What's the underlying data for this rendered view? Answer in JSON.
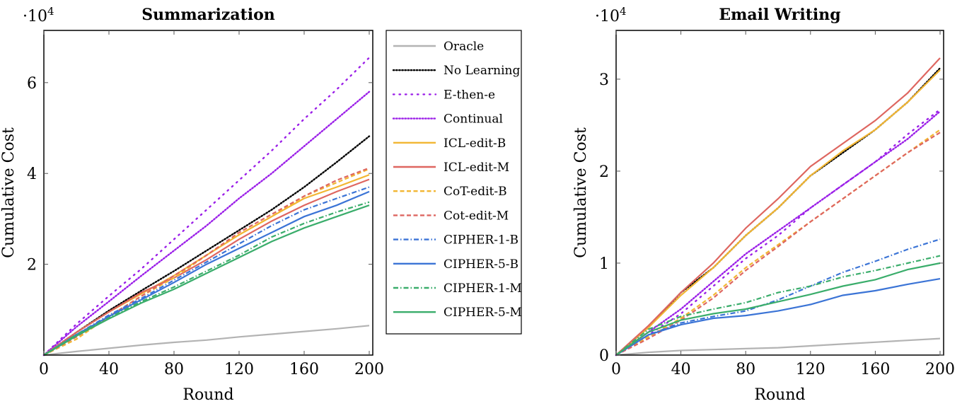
{
  "chart_data": [
    {
      "type": "line",
      "title": "Summarization",
      "xlabel": "Round",
      "ylabel": "Cumulative Cost",
      "y_multiplier": "·10^4",
      "xlim": [
        0,
        200
      ],
      "ylim": [
        0,
        7.15
      ],
      "xticks": [
        0,
        40,
        80,
        120,
        160,
        200
      ],
      "yticks": [
        2,
        4,
        6
      ],
      "grid": false,
      "x": [
        0,
        20,
        40,
        60,
        80,
        100,
        120,
        140,
        160,
        180,
        200
      ],
      "series": [
        {
          "name": "Oracle",
          "values": [
            0,
            0.08,
            0.15,
            0.22,
            0.28,
            0.33,
            0.4,
            0.46,
            0.52,
            0.58,
            0.65
          ]
        },
        {
          "name": "No Learning",
          "values": [
            0,
            0.5,
            0.98,
            1.42,
            1.85,
            2.3,
            2.75,
            3.2,
            3.7,
            4.25,
            4.82
          ]
        },
        {
          "name": "E-then-e",
          "values": [
            0,
            0.68,
            1.3,
            1.9,
            2.55,
            3.2,
            3.85,
            4.5,
            5.2,
            5.85,
            6.55
          ]
        },
        {
          "name": "Continual",
          "values": [
            0,
            0.62,
            1.18,
            1.75,
            2.3,
            2.85,
            3.45,
            4.0,
            4.6,
            5.2,
            5.8
          ]
        },
        {
          "name": "ICL-edit-B",
          "values": [
            0,
            0.5,
            0.95,
            1.35,
            1.75,
            2.2,
            2.65,
            3.05,
            3.45,
            3.7,
            3.97
          ]
        },
        {
          "name": "ICL-edit-M",
          "values": [
            0,
            0.5,
            0.95,
            1.38,
            1.7,
            2.1,
            2.55,
            2.95,
            3.3,
            3.6,
            3.87
          ]
        },
        {
          "name": "CoT-edit-B",
          "values": [
            0,
            0.35,
            0.85,
            1.3,
            1.7,
            2.2,
            2.65,
            3.05,
            3.5,
            3.8,
            4.1
          ]
        },
        {
          "name": "Cot-edit-M",
          "values": [
            0,
            0.4,
            0.85,
            1.3,
            1.75,
            2.2,
            2.7,
            3.1,
            3.5,
            3.85,
            4.12
          ]
        },
        {
          "name": "CIPHER-1-B",
          "values": [
            0,
            0.45,
            0.88,
            1.25,
            1.65,
            2.05,
            2.45,
            2.85,
            3.2,
            3.45,
            3.7
          ]
        },
        {
          "name": "CIPHER-5-B",
          "values": [
            0,
            0.45,
            0.85,
            1.22,
            1.6,
            2.0,
            2.35,
            2.7,
            3.05,
            3.3,
            3.6
          ]
        },
        {
          "name": "CIPHER-1-M",
          "values": [
            0,
            0.45,
            0.82,
            1.18,
            1.5,
            1.85,
            2.2,
            2.6,
            2.9,
            3.15,
            3.37
          ]
        },
        {
          "name": "CIPHER-5-M",
          "values": [
            0,
            0.42,
            0.8,
            1.15,
            1.45,
            1.8,
            2.15,
            2.5,
            2.8,
            3.05,
            3.3
          ]
        }
      ]
    },
    {
      "type": "line",
      "title": "Email Writing",
      "xlabel": "Round",
      "ylabel": "Cumulative Cost",
      "y_multiplier": "·10^4",
      "xlim": [
        0,
        200
      ],
      "ylim": [
        0,
        3.53
      ],
      "xticks": [
        0,
        40,
        80,
        120,
        160,
        200
      ],
      "yticks": [
        0,
        1,
        2,
        3
      ],
      "grid": false,
      "x": [
        0,
        20,
        40,
        60,
        80,
        100,
        120,
        140,
        160,
        180,
        200
      ],
      "series": [
        {
          "name": "Oracle",
          "values": [
            0,
            0.03,
            0.05,
            0.06,
            0.07,
            0.08,
            0.1,
            0.12,
            0.14,
            0.16,
            0.18
          ]
        },
        {
          "name": "No Learning",
          "values": [
            0,
            0.3,
            0.68,
            0.95,
            1.3,
            1.6,
            1.95,
            2.2,
            2.45,
            2.75,
            3.12
          ]
        },
        {
          "name": "E-then-e",
          "values": [
            0,
            0.22,
            0.45,
            0.75,
            1.05,
            1.3,
            1.6,
            1.85,
            2.1,
            2.4,
            2.67
          ]
        },
        {
          "name": "Continual",
          "values": [
            0,
            0.25,
            0.5,
            0.8,
            1.1,
            1.35,
            1.6,
            1.85,
            2.1,
            2.35,
            2.65
          ]
        },
        {
          "name": "ICL-edit-B",
          "values": [
            0,
            0.3,
            0.65,
            0.95,
            1.3,
            1.6,
            1.95,
            2.22,
            2.45,
            2.75,
            3.1
          ]
        },
        {
          "name": "ICL-edit-M",
          "values": [
            0,
            0.32,
            0.68,
            1.0,
            1.38,
            1.7,
            2.05,
            2.3,
            2.55,
            2.85,
            3.23
          ]
        },
        {
          "name": "CoT-edit-B",
          "values": [
            0,
            0.2,
            0.4,
            0.65,
            0.95,
            1.2,
            1.45,
            1.7,
            1.95,
            2.2,
            2.45
          ]
        },
        {
          "name": "Cot-edit-M",
          "values": [
            0,
            0.18,
            0.38,
            0.62,
            0.92,
            1.18,
            1.45,
            1.7,
            1.95,
            2.2,
            2.42
          ]
        },
        {
          "name": "CIPHER-1-B",
          "values": [
            0,
            0.22,
            0.35,
            0.42,
            0.48,
            0.6,
            0.75,
            0.9,
            1.02,
            1.15,
            1.26
          ]
        },
        {
          "name": "CIPHER-5-B",
          "values": [
            0,
            0.22,
            0.33,
            0.4,
            0.43,
            0.48,
            0.55,
            0.65,
            0.7,
            0.77,
            0.83
          ]
        },
        {
          "name": "CIPHER-1-M",
          "values": [
            0,
            0.28,
            0.42,
            0.5,
            0.57,
            0.68,
            0.75,
            0.85,
            0.92,
            1.0,
            1.08
          ]
        },
        {
          "name": "CIPHER-5-M",
          "values": [
            0,
            0.25,
            0.38,
            0.45,
            0.5,
            0.58,
            0.66,
            0.75,
            0.82,
            0.93,
            1.0
          ]
        }
      ]
    }
  ],
  "legend": {
    "placement": "between-panels",
    "items": [
      "Oracle",
      "No Learning",
      "E-then-e",
      "Continual",
      "ICL-edit-B",
      "ICL-edit-M",
      "CoT-edit-B",
      "Cot-edit-M",
      "CIPHER-1-B",
      "CIPHER-5-B",
      "CIPHER-1-M",
      "CIPHER-5-M"
    ]
  },
  "styles": {
    "Oracle": {
      "color": "#b3b3b3",
      "dash": "solid"
    },
    "No Learning": {
      "color": "#000000",
      "dash": "dotted"
    },
    "E-then-e": {
      "color": "#9b1fe8",
      "dash": "loosely-dotted"
    },
    "Continual": {
      "color": "#9b1fe8",
      "dash": "dotted"
    },
    "ICL-edit-B": {
      "color": "#f2b632",
      "dash": "solid"
    },
    "ICL-edit-M": {
      "color": "#de6660",
      "dash": "solid"
    },
    "CoT-edit-B": {
      "color": "#f2b632",
      "dash": "dashed"
    },
    "Cot-edit-M": {
      "color": "#de6660",
      "dash": "dashed"
    },
    "CIPHER-1-B": {
      "color": "#3b74d6",
      "dash": "dash-dot"
    },
    "CIPHER-5-B": {
      "color": "#3b74d6",
      "dash": "solid"
    },
    "CIPHER-1-M": {
      "color": "#3aad6b",
      "dash": "dash-dot"
    },
    "CIPHER-5-M": {
      "color": "#3aad6b",
      "dash": "solid"
    }
  }
}
